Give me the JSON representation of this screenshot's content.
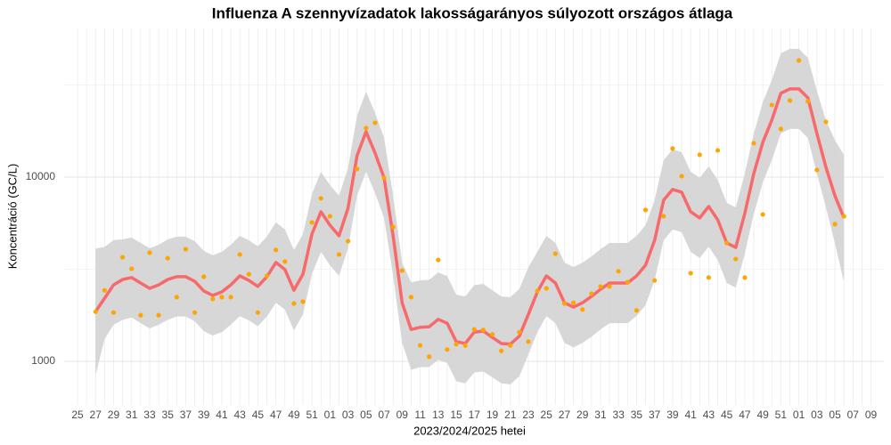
{
  "chart_data": {
    "type": "line",
    "title": "Influenza A szennyvízadatok lakosságarányos súlyozott országos átlaga",
    "x_label": "2023/2024/2025 hetei",
    "y_label": "Koncentráció (GC/L)",
    "categories": [
      "25",
      null,
      "27",
      null,
      "29",
      null,
      "31",
      null,
      "33",
      null,
      "35",
      null,
      "37",
      null,
      "39",
      null,
      "41",
      null,
      "43",
      null,
      "45",
      null,
      "47",
      null,
      "49",
      null,
      "51",
      null,
      "01",
      null,
      "03",
      null,
      "05",
      null,
      "07",
      null,
      "09",
      null,
      "11",
      null,
      "13",
      null,
      "15",
      null,
      "17",
      null,
      "19",
      null,
      "21",
      null,
      "23",
      null,
      "25",
      null,
      "27",
      null,
      "29",
      null,
      "31",
      null,
      "33",
      null,
      "35",
      null,
      "37",
      null,
      "39",
      null,
      "41",
      null,
      "43",
      null,
      "45",
      null,
      "47",
      null,
      "49",
      null,
      "51",
      null,
      "01",
      null,
      "03",
      null,
      "05",
      null,
      "07",
      null,
      "09"
    ],
    "log_y": true,
    "ylim": [
      580,
      64000
    ],
    "yticks": [
      1000,
      10000
    ],
    "yminor": [
      3162,
      31623
    ],
    "grid": true,
    "series": [
      {
        "style": "ribbon-lower",
        "color": "#d3d3d3",
        "values": [
          null,
          null,
          840,
          1320,
          1580,
          1680,
          1730,
          1610,
          1510,
          1580,
          1680,
          1750,
          1750,
          1650,
          1460,
          1380,
          1440,
          1580,
          1760,
          1670,
          1550,
          1750,
          2080,
          1910,
          1470,
          1800,
          2980,
          3930,
          3320,
          2910,
          4110,
          7910,
          10690,
          8180,
          5990,
          2910,
          1260,
          900,
          930,
          930,
          1020,
          980,
          780,
          760,
          870,
          880,
          820,
          760,
          750,
          830,
          1090,
          1440,
          1760,
          1610,
          1260,
          1190,
          1260,
          1360,
          1490,
          1610,
          1610,
          1610,
          1760,
          2020,
          2750,
          4540,
          5190,
          5020,
          3930,
          3640,
          4200,
          3550,
          2660,
          2510,
          3840,
          6330,
          9350,
          12350,
          17250,
          18230,
          18230,
          16310,
          10450,
          6850,
          4360,
          2700,
          null,
          null,
          null
        ]
      },
      {
        "style": "ribbon-upper",
        "color": "#d3d3d3",
        "values": [
          null,
          null,
          4090,
          4180,
          4550,
          4590,
          4700,
          4390,
          4110,
          4290,
          4590,
          4750,
          4750,
          4490,
          3980,
          3760,
          3930,
          4290,
          4800,
          4540,
          4210,
          4750,
          5680,
          5200,
          4010,
          4900,
          8100,
          10690,
          9040,
          7920,
          11190,
          21550,
          29110,
          22280,
          16320,
          7920,
          3430,
          2680,
          2750,
          2770,
          3040,
          2900,
          2300,
          2250,
          2590,
          2630,
          2430,
          2250,
          2230,
          2470,
          3240,
          3930,
          4800,
          4390,
          3430,
          3250,
          3430,
          3710,
          4060,
          4390,
          4390,
          4390,
          4800,
          5490,
          7490,
          12360,
          14120,
          13660,
          10690,
          9900,
          11430,
          9670,
          7240,
          6850,
          10460,
          17240,
          25460,
          33630,
          46960,
          49630,
          49630,
          44420,
          29330,
          20340,
          15840,
          13200,
          null,
          null,
          null
        ]
      },
      {
        "style": "line",
        "color": "#f8696b",
        "values": [
          null,
          null,
          1860,
          2200,
          2600,
          2780,
          2850,
          2660,
          2490,
          2600,
          2780,
          2880,
          2880,
          2720,
          2410,
          2280,
          2380,
          2600,
          2910,
          2750,
          2550,
          2880,
          3440,
          3150,
          2430,
          2970,
          4910,
          6480,
          5480,
          4800,
          6780,
          13060,
          17640,
          13500,
          9890,
          4800,
          2080,
          1490,
          1530,
          1540,
          1690,
          1610,
          1280,
          1250,
          1440,
          1460,
          1350,
          1250,
          1240,
          1370,
          1800,
          2380,
          2910,
          2660,
          2080,
          1970,
          2080,
          2250,
          2460,
          2660,
          2660,
          2660,
          2910,
          3330,
          4540,
          7490,
          8560,
          8280,
          6480,
          6000,
          6930,
          5860,
          4390,
          4150,
          6340,
          10450,
          15430,
          20380,
          28460,
          30080,
          30080,
          26920,
          17250,
          11300,
          7920,
          6000,
          null,
          null,
          null
        ]
      },
      {
        "style": "points",
        "color": "#ffa500",
        "values": [
          null,
          null,
          1860,
          2430,
          1840,
          3670,
          3180,
          1780,
          3890,
          1780,
          3630,
          2230,
          4060,
          1840,
          2880,
          2180,
          2230,
          2230,
          3800,
          2970,
          1840,
          2910,
          4020,
          3480,
          2060,
          2110,
          5670,
          7660,
          6130,
          3800,
          4490,
          11050,
          18440,
          19710,
          9890,
          5360,
          3110,
          2230,
          1220,
          1060,
          3550,
          1160,
          1240,
          1220,
          1490,
          1480,
          1400,
          1140,
          1220,
          1440,
          1280,
          2410,
          2490,
          3840,
          2060,
          2080,
          1910,
          2330,
          2550,
          2550,
          3080,
          2690,
          1890,
          6630,
          2750,
          6130,
          14280,
          10110,
          3010,
          13210,
          2850,
          13960,
          4390,
          3590,
          2850,
          15260,
          6270,
          24620,
          18240,
          26030,
          42950,
          25740,
          10930,
          19930,
          5550,
          6130,
          null,
          null,
          null
        ]
      }
    ]
  }
}
